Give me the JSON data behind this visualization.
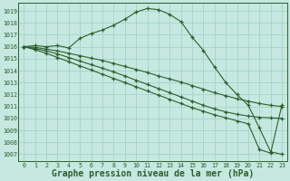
{
  "background_color": "#c5e8e0",
  "grid_color": "#9ecfc4",
  "line_color": "#2d5e2d",
  "xlabel": "Graphe pression niveau de la mer (hPa)",
  "xlabel_fontsize": 7,
  "ytick_labels": [
    "1007",
    "1008",
    "1009",
    "1010",
    "1011",
    "1012",
    "1013",
    "1014",
    "1015",
    "1016",
    "1017",
    "1018",
    "1019"
  ],
  "yticks": [
    1007,
    1008,
    1009,
    1010,
    1011,
    1012,
    1013,
    1014,
    1015,
    1016,
    1017,
    1018,
    1019
  ],
  "ylim": [
    1006.4,
    1019.7
  ],
  "xlim": [
    -0.5,
    23.5
  ],
  "series": [
    [
      1016.0,
      1016.1,
      1016.0,
      1016.1,
      1015.9,
      1016.7,
      1017.1,
      1017.4,
      1017.8,
      1018.3,
      1018.9,
      1019.2,
      1019.1,
      1018.7,
      1018.1,
      1016.8,
      1015.7,
      1014.3,
      1013.0,
      1012.0,
      1011.1,
      1009.2,
      1007.2,
      1007.0
    ],
    [
      1016.0,
      1015.95,
      1015.8,
      1015.65,
      1015.45,
      1015.25,
      1015.05,
      1014.85,
      1014.6,
      1014.35,
      1014.1,
      1013.85,
      1013.55,
      1013.3,
      1013.05,
      1012.75,
      1012.45,
      1012.15,
      1011.9,
      1011.65,
      1011.45,
      1011.25,
      1011.1,
      1011.0
    ],
    [
      1016.0,
      1015.85,
      1015.65,
      1015.4,
      1015.1,
      1014.8,
      1014.5,
      1014.2,
      1013.9,
      1013.55,
      1013.2,
      1012.85,
      1012.5,
      1012.15,
      1011.8,
      1011.45,
      1011.1,
      1010.8,
      1010.55,
      1010.35,
      1010.2,
      1010.1,
      1010.05,
      1010.0
    ],
    [
      1016.0,
      1015.75,
      1015.45,
      1015.1,
      1014.75,
      1014.4,
      1014.05,
      1013.7,
      1013.35,
      1013.0,
      1012.65,
      1012.3,
      1011.95,
      1011.6,
      1011.25,
      1010.9,
      1010.6,
      1010.3,
      1010.05,
      1009.8,
      1009.55,
      1007.4,
      1007.1,
      1011.1
    ]
  ]
}
